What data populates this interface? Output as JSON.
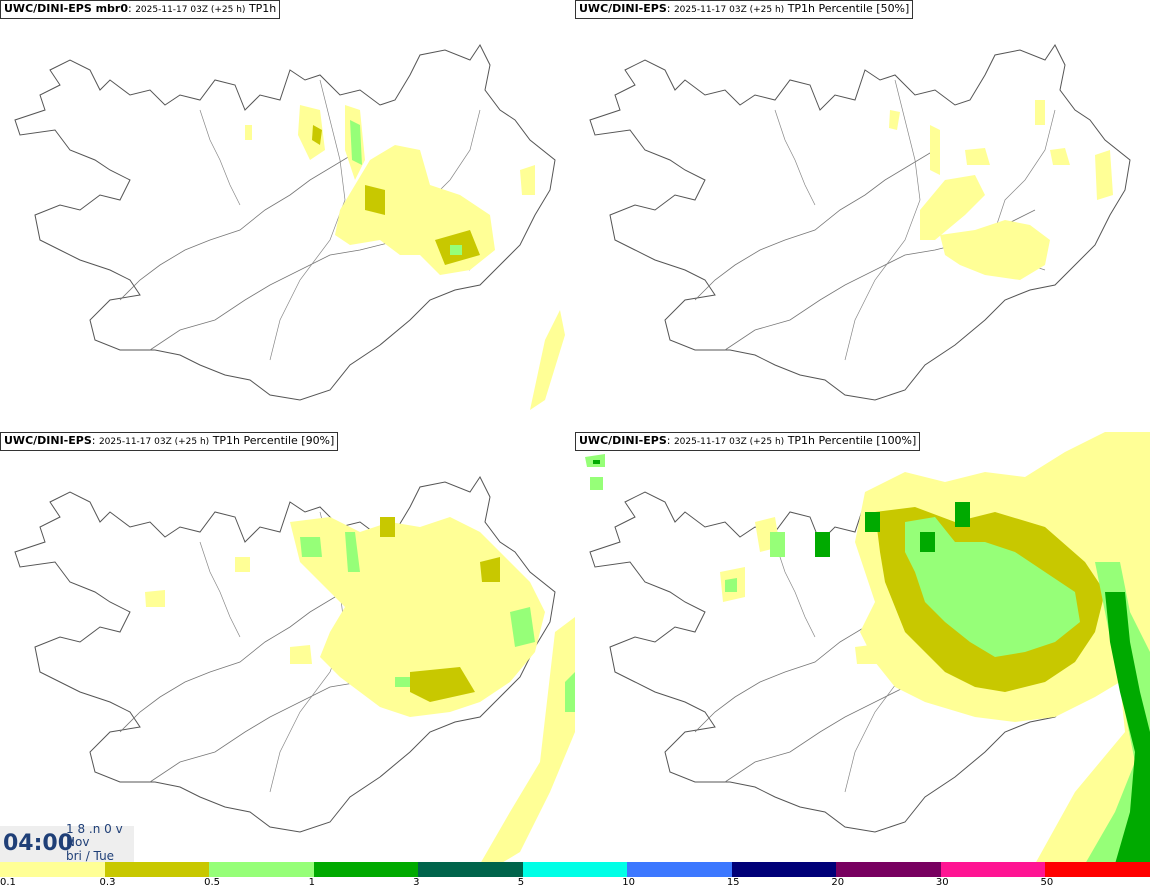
{
  "panels": [
    {
      "model": "UWC/DINI-EPS mbr0",
      "time": "2025-11-17 03Z (+25 h)",
      "product": "TP1h"
    },
    {
      "model": "UWC/DINI-EPS",
      "time": "2025-11-17 03Z (+25 h)",
      "product": "TP1h Percentile [50%]"
    },
    {
      "model": "UWC/DINI-EPS",
      "time": "2025-11-17 03Z (+25 h)",
      "product": "TP1h Percentile [90%]"
    },
    {
      "model": "UWC/DINI-EPS",
      "time": "2025-11-17 03Z (+25 h)",
      "product": "TP1h Percentile [100%]"
    }
  ],
  "clock": {
    "time": "04:00",
    "top_fragment": "1 8 .n 0 v ./",
    "month": "Nov",
    "day": "bri / Tue"
  },
  "legend": {
    "bins": [
      {
        "label": "0.1",
        "color": "#ffff96"
      },
      {
        "label": "0.3",
        "color": "#c8c800"
      },
      {
        "label": "0.5",
        "color": "#96ff78"
      },
      {
        "label": "1",
        "color": "#00aa00"
      },
      {
        "label": "3",
        "color": "#00644b"
      },
      {
        "label": "5",
        "color": "#00ffe6"
      },
      {
        "label": "10",
        "color": "#3c78ff"
      },
      {
        "label": "15",
        "color": "#000078"
      },
      {
        "label": "20",
        "color": "#780060"
      },
      {
        "label": "30",
        "color": "#ff1493"
      },
      {
        "label": "50",
        "color": "#ff0000"
      }
    ]
  }
}
